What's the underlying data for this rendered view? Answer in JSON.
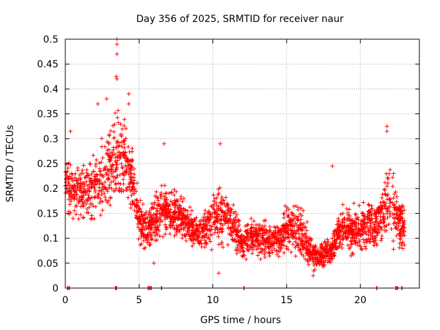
{
  "chart_data": {
    "type": "scatter",
    "title": "Day 356 of 2025, SRMTID for receiver naur",
    "xlabel": "GPS time / hours",
    "ylabel": "SRMTID / TECUs",
    "xlim": [
      0,
      24
    ],
    "ylim": [
      0,
      0.5
    ],
    "x_ticks": [
      0,
      5,
      10,
      15,
      20
    ],
    "x_tick_labels": [
      "0",
      "5",
      "10",
      "15",
      "20"
    ],
    "y_ticks": [
      0,
      0.05,
      0.1,
      0.15,
      0.2,
      0.25,
      0.3,
      0.35,
      0.4,
      0.45,
      0.5
    ],
    "y_tick_labels": [
      "0",
      "0.05",
      "0.1",
      "0.15",
      "0.2",
      "0.25",
      "0.3",
      "0.35",
      "0.4",
      "0.45",
      "0.5"
    ],
    "grid": true,
    "marker": "+",
    "color": "#ff0000",
    "trend_profile": {
      "description": "approximate envelope of the dense per-satellite SRMTID scatter, read off the chart",
      "x": [
        0.0,
        0.5,
        1.0,
        1.5,
        2.0,
        2.5,
        3.0,
        3.5,
        4.0,
        4.5,
        5.0,
        5.5,
        6.0,
        6.5,
        7.0,
        7.5,
        8.0,
        8.5,
        9.0,
        9.5,
        10.0,
        10.5,
        11.0,
        11.5,
        12.0,
        12.5,
        13.0,
        13.5,
        14.0,
        14.5,
        15.0,
        15.5,
        16.0,
        16.5,
        17.0,
        17.5,
        18.0,
        18.5,
        19.0,
        19.5,
        20.0,
        20.5,
        21.0,
        21.5,
        22.0,
        22.5,
        23.0
      ],
      "center": [
        0.22,
        0.19,
        0.2,
        0.19,
        0.2,
        0.22,
        0.25,
        0.27,
        0.28,
        0.22,
        0.14,
        0.12,
        0.13,
        0.16,
        0.15,
        0.15,
        0.14,
        0.12,
        0.11,
        0.12,
        0.13,
        0.15,
        0.14,
        0.12,
        0.09,
        0.1,
        0.1,
        0.1,
        0.09,
        0.1,
        0.12,
        0.12,
        0.11,
        0.08,
        0.06,
        0.07,
        0.07,
        0.11,
        0.12,
        0.12,
        0.12,
        0.13,
        0.12,
        0.15,
        0.17,
        0.14,
        0.11
      ],
      "spread": [
        0.04,
        0.05,
        0.05,
        0.05,
        0.05,
        0.06,
        0.07,
        0.08,
        0.07,
        0.06,
        0.04,
        0.04,
        0.04,
        0.04,
        0.04,
        0.04,
        0.04,
        0.03,
        0.03,
        0.04,
        0.04,
        0.05,
        0.04,
        0.04,
        0.03,
        0.03,
        0.03,
        0.03,
        0.03,
        0.03,
        0.04,
        0.04,
        0.04,
        0.03,
        0.02,
        0.02,
        0.02,
        0.03,
        0.04,
        0.04,
        0.04,
        0.04,
        0.04,
        0.05,
        0.06,
        0.05,
        0.04
      ]
    },
    "peak_points": [
      {
        "x": 3.5,
        "y": 0.5
      },
      {
        "x": 3.5,
        "y": 0.49
      },
      {
        "x": 3.5,
        "y": 0.47
      },
      {
        "x": 3.45,
        "y": 0.425
      },
      {
        "x": 3.5,
        "y": 0.42
      },
      {
        "x": 2.2,
        "y": 0.37
      },
      {
        "x": 2.8,
        "y": 0.38
      },
      {
        "x": 4.3,
        "y": 0.39
      },
      {
        "x": 4.3,
        "y": 0.37
      },
      {
        "x": 10.5,
        "y": 0.29
      },
      {
        "x": 21.8,
        "y": 0.325
      },
      {
        "x": 21.8,
        "y": 0.315
      },
      {
        "x": 0.35,
        "y": 0.315
      },
      {
        "x": 6.7,
        "y": 0.29
      },
      {
        "x": 18.1,
        "y": 0.245
      },
      {
        "x": 10.4,
        "y": 0.03
      },
      {
        "x": 16.8,
        "y": 0.025
      },
      {
        "x": 6.0,
        "y": 0.05
      }
    ],
    "zero_points_x": [
      0.15,
      0.25,
      3.4,
      3.45,
      5.6,
      5.7,
      5.8,
      6.5,
      12.1,
      21.1,
      22.4,
      22.5,
      22.8
    ]
  }
}
